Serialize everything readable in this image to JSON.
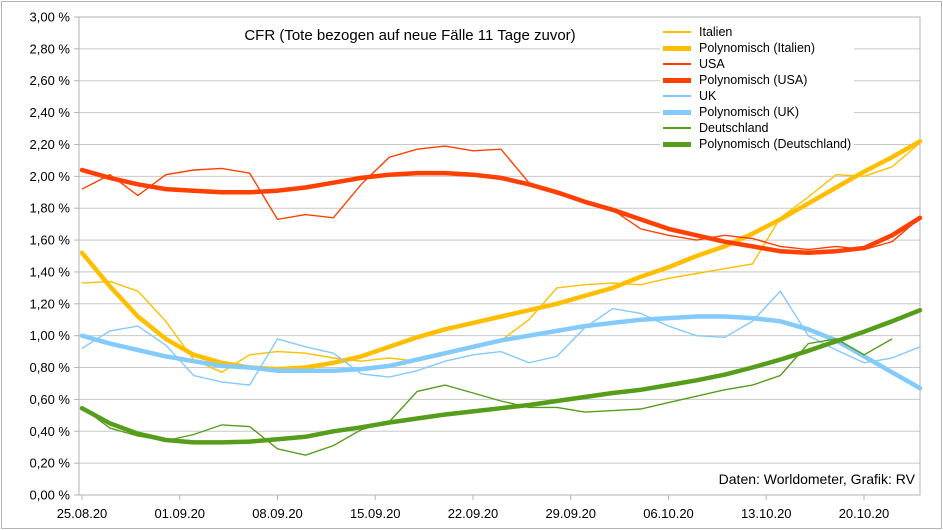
{
  "title": "CFR (Tote bezogen auf neue Fälle 11 Tage zuvor)",
  "source_note": "Daten: Worldometer, Grafik: RV",
  "colors": {
    "italien": "#FFBF00",
    "usa": "#FF4000",
    "uk": "#83CAFF",
    "deutschland": "#579D1C",
    "gridline": "#c8c8c8",
    "plot_border": "#b3b3b3",
    "text": "#000000",
    "background": "#ffffff"
  },
  "chart_data": {
    "type": "line",
    "title": "CFR (Tote bezogen auf neue Fälle 11 Tage zuvor)",
    "xlabel": "",
    "ylabel": "",
    "grid": "horizontal",
    "legend_position": "top-right-inside",
    "y_axis": {
      "min": 0,
      "max": 3,
      "step": 0.2,
      "suffix": " %",
      "decimal": "comma",
      "format_example": "2,00 %"
    },
    "x_axis_ticks": [
      "25.08.20",
      "01.09.20",
      "08.09.20",
      "15.09.20",
      "22.09.20",
      "29.09.20",
      "06.10.20",
      "13.10.20",
      "20.10.20"
    ],
    "x": [
      "25.08.20",
      "27.08.20",
      "29.08.20",
      "31.08.20",
      "02.09.20",
      "04.09.20",
      "06.09.20",
      "08.09.20",
      "10.09.20",
      "12.09.20",
      "14.09.20",
      "16.09.20",
      "18.09.20",
      "20.09.20",
      "22.09.20",
      "24.09.20",
      "26.09.20",
      "28.09.20",
      "30.09.20",
      "02.10.20",
      "04.10.20",
      "06.10.20",
      "08.10.20",
      "10.10.20",
      "12.10.20",
      "14.10.20",
      "16.10.20",
      "18.10.20",
      "20.10.20",
      "22.10.20",
      "24.10.20"
    ],
    "unit": "percent",
    "series": [
      {
        "name": "Italien",
        "kind": "raw",
        "color": "#FFBF00",
        "width": 1.4,
        "values": [
          1.33,
          1.34,
          1.28,
          1.09,
          0.85,
          0.77,
          0.88,
          0.9,
          0.89,
          0.86,
          0.84,
          0.86,
          0.84,
          0.88,
          0.93,
          0.97,
          1.1,
          1.3,
          1.32,
          1.33,
          1.32,
          1.36,
          1.39,
          1.42,
          1.45,
          1.74,
          1.87,
          2.01,
          2.0,
          2.06,
          2.21
        ]
      },
      {
        "name": "Polynomisch (Italien)",
        "kind": "trend",
        "color": "#FFBF00",
        "width": 4.5,
        "values": [
          1.52,
          1.31,
          1.12,
          0.98,
          0.88,
          0.83,
          0.8,
          0.79,
          0.8,
          0.83,
          0.87,
          0.93,
          0.99,
          1.04,
          1.08,
          1.12,
          1.16,
          1.2,
          1.25,
          1.3,
          1.37,
          1.43,
          1.5,
          1.56,
          1.64,
          1.73,
          1.83,
          1.93,
          2.03,
          2.12,
          2.22
        ]
      },
      {
        "name": "USA",
        "kind": "raw",
        "color": "#FF4000",
        "width": 1.4,
        "values": [
          1.92,
          2.01,
          1.88,
          2.01,
          2.04,
          2.05,
          2.02,
          1.73,
          1.76,
          1.74,
          1.95,
          2.12,
          2.17,
          2.19,
          2.16,
          2.17,
          1.96,
          1.89,
          1.84,
          1.79,
          1.67,
          1.63,
          1.6,
          1.63,
          1.61,
          1.56,
          1.54,
          1.56,
          1.54,
          1.59,
          1.74
        ]
      },
      {
        "name": "Polynomisch (USA)",
        "kind": "trend",
        "color": "#FF4000",
        "width": 4.5,
        "values": [
          2.04,
          1.99,
          1.95,
          1.92,
          1.91,
          1.9,
          1.9,
          1.91,
          1.93,
          1.96,
          1.99,
          2.01,
          2.02,
          2.02,
          2.01,
          1.99,
          1.95,
          1.9,
          1.84,
          1.79,
          1.73,
          1.67,
          1.63,
          1.59,
          1.56,
          1.53,
          1.52,
          1.53,
          1.55,
          1.63,
          1.74
        ]
      },
      {
        "name": "UK",
        "kind": "raw",
        "color": "#83CAFF",
        "width": 1.4,
        "values": [
          0.92,
          1.03,
          1.06,
          0.94,
          0.75,
          0.71,
          0.69,
          0.98,
          0.93,
          0.89,
          0.76,
          0.74,
          0.78,
          0.84,
          0.88,
          0.9,
          0.83,
          0.87,
          1.05,
          1.17,
          1.14,
          1.06,
          1.0,
          0.99,
          1.09,
          1.28,
          1.0,
          0.91,
          0.83,
          0.86,
          0.93
        ]
      },
      {
        "name": "Polynomisch (UK)",
        "kind": "trend",
        "color": "#83CAFF",
        "width": 4.5,
        "values": [
          1.0,
          0.95,
          0.91,
          0.87,
          0.84,
          0.81,
          0.8,
          0.78,
          0.78,
          0.78,
          0.79,
          0.81,
          0.85,
          0.89,
          0.93,
          0.97,
          1.0,
          1.03,
          1.06,
          1.08,
          1.1,
          1.11,
          1.12,
          1.12,
          1.11,
          1.09,
          1.04,
          0.97,
          0.87,
          0.77,
          0.67
        ]
      },
      {
        "name": "Deutschland",
        "kind": "raw",
        "color": "#579D1C",
        "width": 1.4,
        "values": [
          0.55,
          0.42,
          0.37,
          0.34,
          0.38,
          0.44,
          0.43,
          0.29,
          0.25,
          0.31,
          0.41,
          0.46,
          0.65,
          0.69,
          0.64,
          0.59,
          0.55,
          0.55,
          0.52,
          0.53,
          0.54,
          0.58,
          0.62,
          0.66,
          0.69,
          0.75,
          0.95,
          0.98,
          0.88,
          0.98,
          null
        ]
      },
      {
        "name": "Polynomisch (Deutschland)",
        "kind": "trend",
        "color": "#579D1C",
        "width": 4.5,
        "values": [
          0.545,
          0.45,
          0.385,
          0.345,
          0.33,
          0.33,
          0.335,
          0.35,
          0.365,
          0.4,
          0.425,
          0.455,
          0.48,
          0.505,
          0.525,
          0.545,
          0.565,
          0.59,
          0.615,
          0.64,
          0.66,
          0.69,
          0.72,
          0.755,
          0.8,
          0.85,
          0.905,
          0.965,
          1.025,
          1.09,
          1.16
        ]
      }
    ]
  }
}
